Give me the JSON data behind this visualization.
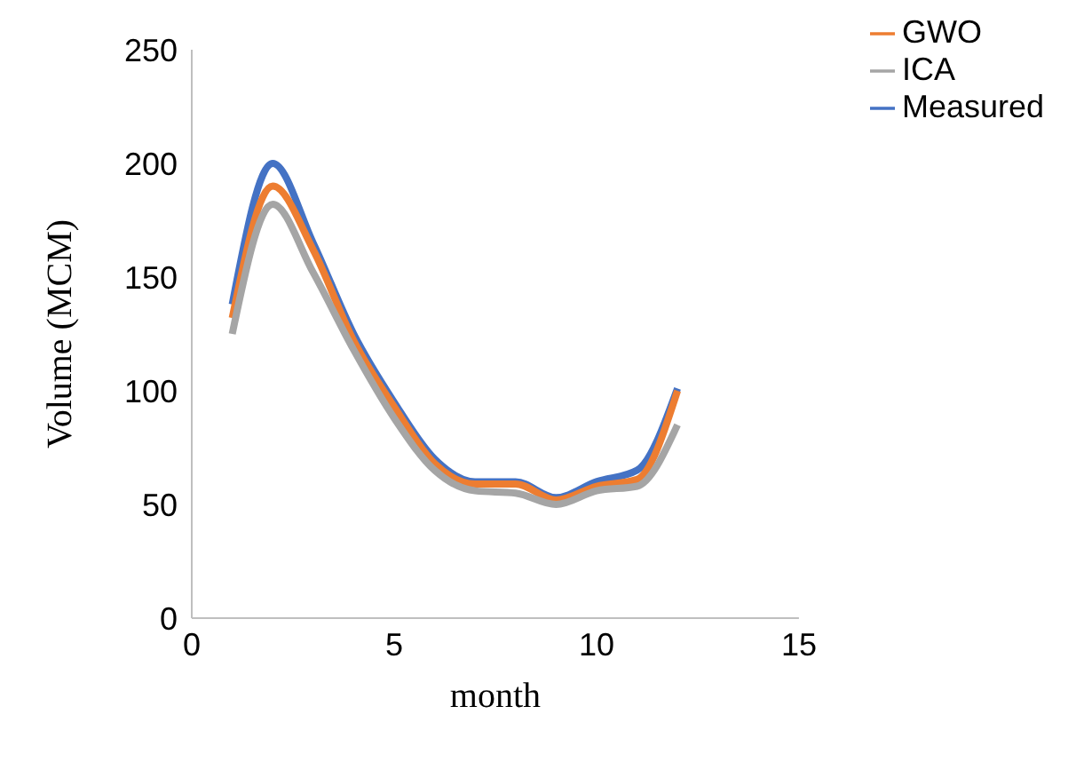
{
  "chart_data": {
    "type": "line",
    "xlabel": "month",
    "ylabel": "Volume (MCM)",
    "x": [
      1,
      2,
      3,
      4,
      5,
      6,
      7,
      8,
      9,
      10,
      11,
      12
    ],
    "series": [
      {
        "name": "Measured",
        "color": "#4472c4",
        "values": [
          138,
          200,
          165,
          125,
          95,
          70,
          60,
          60,
          53,
          60,
          65,
          101
        ]
      },
      {
        "name": "GWO",
        "color": "#ed7d31",
        "values": [
          132,
          190,
          162,
          122,
          93,
          68,
          59,
          59,
          52,
          58,
          61,
          100
        ]
      },
      {
        "name": "ICA",
        "color": "#a5a5a5",
        "values": [
          125,
          182,
          152,
          118,
          88,
          65,
          56,
          55,
          50,
          56,
          58,
          85
        ]
      }
    ],
    "xlim": [
      0,
      15
    ],
    "xticks": [
      0,
      5,
      10,
      15
    ],
    "ylim": [
      0,
      250
    ],
    "yticks": [
      0,
      50,
      100,
      150,
      200,
      250
    ],
    "grid": false,
    "legend": "top right",
    "marker": "none",
    "line_style": "solid"
  }
}
